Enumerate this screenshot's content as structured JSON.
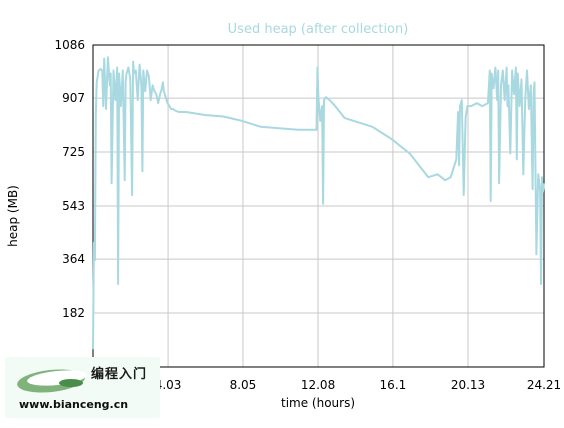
{
  "chart_data": {
    "type": "line",
    "title": "Used heap (after collection)",
    "xlabel": "time (hours)",
    "ylabel": "heap (MB)",
    "x_ticks": [
      "4.03",
      "8.05",
      "12.08",
      "16.1",
      "20.13",
      "24.21"
    ],
    "y_ticks": [
      "182",
      "364",
      "543",
      "725",
      "907",
      "1086"
    ],
    "xlim": [
      0,
      24.21
    ],
    "ylim": [
      0,
      1086
    ],
    "grid": true,
    "series_color": "#a8d8e0",
    "series": [
      {
        "x": [
          0.0,
          0.05,
          0.1,
          0.15,
          0.2,
          0.3,
          0.4,
          0.5,
          0.55,
          0.6,
          0.7,
          0.8,
          0.9,
          0.95,
          1.0,
          1.1,
          1.2,
          1.3,
          1.35,
          1.4,
          1.5,
          1.6,
          1.7,
          1.75,
          1.8,
          1.9,
          2.0,
          2.1,
          2.15,
          2.2,
          2.3,
          2.4,
          2.5,
          2.6,
          2.65,
          2.7,
          2.8,
          2.9,
          3.0,
          3.1,
          3.2,
          3.3,
          3.4,
          3.5,
          3.6,
          3.7,
          3.75,
          3.8,
          3.9,
          4.0,
          4.1,
          4.2,
          4.3,
          4.4,
          4.6,
          4.8,
          5.0,
          5.5,
          6.0,
          7.0,
          8.0,
          9.0,
          10.0,
          11.0,
          11.5,
          12.0,
          12.05,
          12.1,
          12.2,
          12.3,
          12.35,
          12.4,
          12.5,
          12.7,
          13.0,
          13.5,
          14.0,
          15.0,
          16.0,
          17.0,
          17.5,
          18.0,
          18.5,
          18.9,
          19.2,
          19.5,
          19.6,
          19.65,
          19.7,
          19.8,
          19.9,
          20.0,
          20.1,
          20.3,
          20.6,
          20.9,
          21.2,
          21.3,
          21.35,
          21.4,
          21.5,
          21.6,
          21.7,
          21.75,
          21.8,
          21.9,
          22.0,
          22.1,
          22.2,
          22.25,
          22.3,
          22.4,
          22.5,
          22.6,
          22.7,
          22.75,
          22.8,
          22.9,
          23.0,
          23.1,
          23.2,
          23.3,
          23.4,
          23.5,
          23.6,
          23.65,
          23.7,
          23.8,
          23.9,
          24.0,
          24.05,
          24.1,
          24.15,
          24.21
        ],
        "values": [
          60,
          420,
          360,
          850,
          960,
          1000,
          1005,
          1000,
          880,
          1040,
          870,
          1045,
          950,
          990,
          620,
          1000,
          900,
          1010,
          280,
          990,
          880,
          1000,
          630,
          960,
          990,
          1010,
          970,
          580,
          1030,
          990,
          1000,
          900,
          1020,
          950,
          660,
          1000,
          930,
          1000,
          980,
          900,
          950,
          930,
          920,
          890,
          920,
          940,
          960,
          930,
          910,
          890,
          880,
          870,
          870,
          865,
          860,
          860,
          860,
          855,
          850,
          845,
          830,
          810,
          805,
          800,
          800,
          800,
          1010,
          910,
          830,
          880,
          550,
          900,
          910,
          900,
          880,
          840,
          830,
          810,
          770,
          720,
          680,
          640,
          650,
          630,
          640,
          700,
          860,
          680,
          880,
          900,
          580,
          840,
          880,
          880,
          890,
          880,
          890,
          1000,
          560,
          990,
          940,
          1010,
          900,
          1000,
          620,
          950,
          1000,
          900,
          1010,
          880,
          950,
          720,
          1000,
          920,
          1010,
          700,
          990,
          880,
          970,
          650,
          900,
          1000,
          870,
          950,
          600,
          920,
          960,
          380,
          650,
          600,
          280,
          640,
          590,
          620
        ]
      }
    ]
  },
  "watermark": {
    "name": "编程入门",
    "url": "www.bianceng.cn"
  }
}
